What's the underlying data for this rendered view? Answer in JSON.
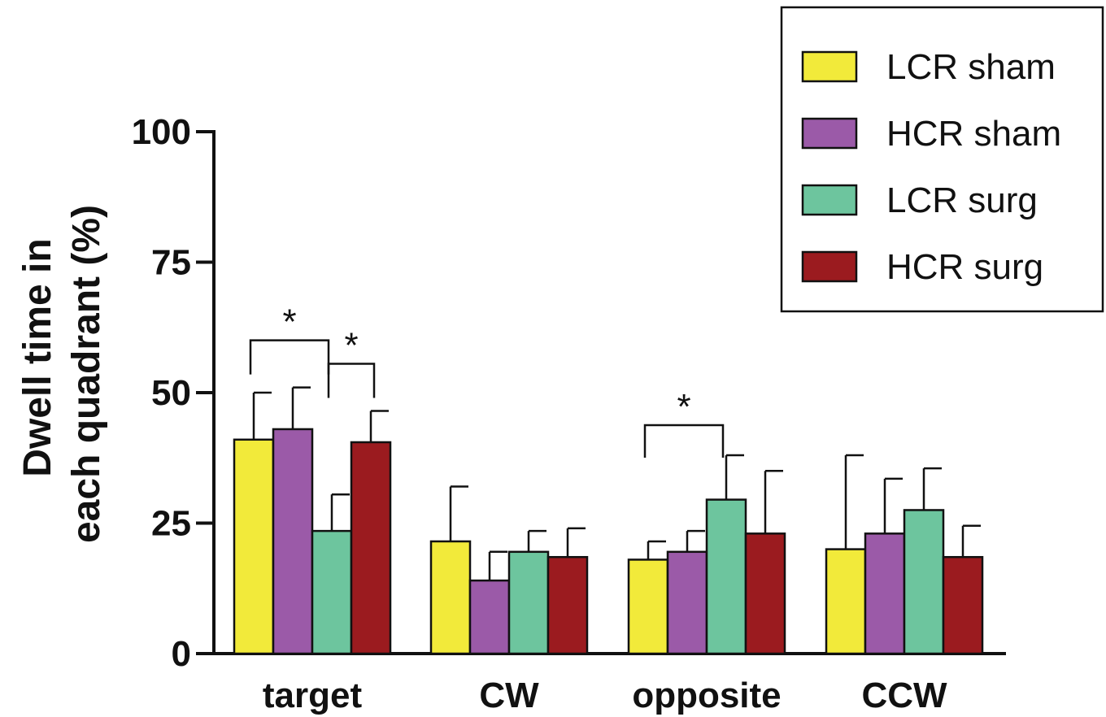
{
  "chart_data": {
    "type": "bar",
    "ylabel_lines": [
      "Dwell time in",
      "each quadrant (%)"
    ],
    "categories": [
      "target",
      "CW",
      "opposite",
      "CCW"
    ],
    "ylim": [
      0,
      100
    ],
    "yticks": [
      0,
      25,
      50,
      75,
      100
    ],
    "legend_position": "top-right",
    "series": [
      {
        "name": "LCR sham",
        "color": "#f2ea3a",
        "values": [
          41,
          21.5,
          18,
          20
        ],
        "errors": [
          9,
          10.5,
          3.5,
          18
        ]
      },
      {
        "name": "HCR sham",
        "color": "#9b5aa8",
        "values": [
          43,
          14,
          19.5,
          23
        ],
        "errors": [
          8,
          5.5,
          4,
          10.5
        ]
      },
      {
        "name": "LCR surg",
        "color": "#6dc59e",
        "values": [
          23.5,
          19.5,
          29.5,
          27.5
        ],
        "errors": [
          7,
          4,
          8.5,
          8
        ]
      },
      {
        "name": "HCR surg",
        "color": "#9b1b1f",
        "values": [
          40.5,
          18.5,
          23,
          18.5
        ],
        "errors": [
          6,
          5.5,
          12,
          6
        ]
      }
    ],
    "significance": [
      {
        "category": 0,
        "from_series": 0,
        "to_series": 2,
        "label": "*"
      },
      {
        "category": 0,
        "from_series": 2,
        "to_series": 3,
        "label": "*"
      },
      {
        "category": 2,
        "from_series": 0,
        "to_series": 2,
        "label": "*"
      }
    ]
  }
}
